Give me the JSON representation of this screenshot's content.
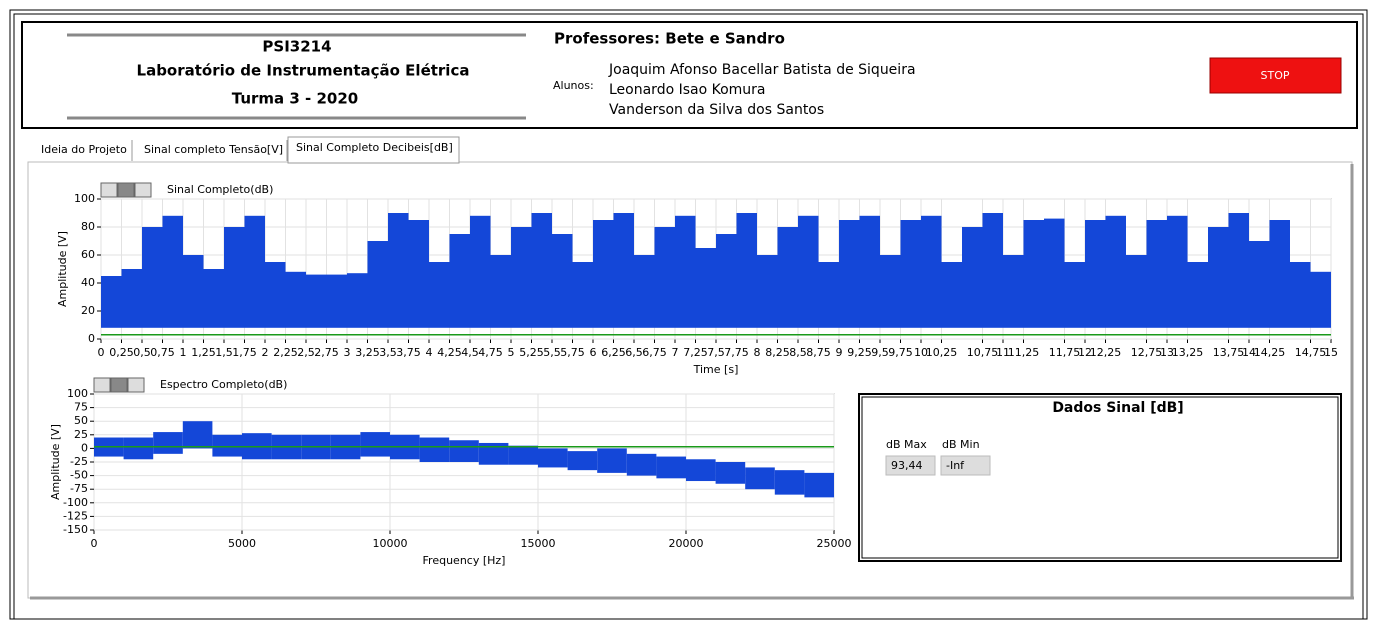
{
  "header": {
    "course": "PSI3214",
    "lab": "Laboratório de Instrumentação Elétrica",
    "class": "Turma 3 - 2020",
    "professors": "Professores: Bete e Sandro",
    "students_label": "Alunos:",
    "students": [
      "Joaquim Afonso Bacellar Batista de Siqueira",
      "Leonardo Isao Komura",
      "Vanderson da Silva dos Santos"
    ],
    "stop": "STOP"
  },
  "tabs": [
    "Ideia do Projeto",
    "Sinal completo Tensão[V]",
    "Sinal Completo Decibeis[dB]"
  ],
  "data_panel": {
    "title": "Dados Sinal [dB]",
    "max_label": "dB Max",
    "max_value": "93,44",
    "min_label": "dB Min",
    "min_value": "-Inf"
  },
  "chart_data": [
    {
      "type": "band",
      "title": "Sinal  Completo(dB)",
      "x_label": "Time [s]",
      "y_label": "Amplitude [V]",
      "color": "#1447d8",
      "cursor_y": 3,
      "xlim": [
        0,
        15
      ],
      "ylim": [
        0,
        100
      ],
      "yticks": [
        0,
        20,
        40,
        60,
        80,
        100
      ],
      "xticks": [
        0,
        {
          "value": 0.25,
          "label": "0,25"
        },
        {
          "value": 0.5,
          "label": "0,5"
        },
        {
          "value": 0.75,
          "label": "0,75"
        },
        1,
        {
          "value": 1.25,
          "label": "1,25"
        },
        {
          "value": 1.5,
          "label": "1,5"
        },
        {
          "value": 1.75,
          "label": "1,75"
        },
        2,
        {
          "value": 2.25,
          "label": "2,25"
        },
        {
          "value": 2.5,
          "label": "2,5"
        },
        {
          "value": 2.75,
          "label": "2,75"
        },
        3,
        {
          "value": 3.25,
          "label": "3,25"
        },
        {
          "value": 3.5,
          "label": "3,5"
        },
        {
          "value": 3.75,
          "label": "3,75"
        },
        4,
        {
          "value": 4.25,
          "label": "4,25"
        },
        {
          "value": 4.5,
          "label": "4,5"
        },
        {
          "value": 4.75,
          "label": "4,75"
        },
        5,
        {
          "value": 5.25,
          "label": "5,25"
        },
        {
          "value": 5.5,
          "label": "5,5"
        },
        {
          "value": 5.75,
          "label": "5,75"
        },
        6,
        {
          "value": 6.25,
          "label": "6,25"
        },
        {
          "value": 6.5,
          "label": "6,5"
        },
        {
          "value": 6.75,
          "label": "6,75"
        },
        7,
        {
          "value": 7.25,
          "label": "7,25"
        },
        {
          "value": 7.5,
          "label": "7,5"
        },
        {
          "value": 7.75,
          "label": "7,75"
        },
        8,
        {
          "value": 8.25,
          "label": "8,25"
        },
        {
          "value": 8.5,
          "label": "8,5"
        },
        {
          "value": 8.75,
          "label": "8,75"
        },
        9,
        {
          "value": 9.25,
          "label": "9,25"
        },
        {
          "value": 9.5,
          "label": "9,5"
        },
        {
          "value": 9.75,
          "label": "9,75"
        },
        10,
        {
          "value": 10.25,
          "label": "10,25"
        },
        {
          "value": 10.75,
          "label": "10,75"
        },
        11,
        {
          "value": 11.25,
          "label": "11,25"
        },
        {
          "value": 11.75,
          "label": "11,75"
        },
        12,
        {
          "value": 12.25,
          "label": "12,25"
        },
        {
          "value": 12.75,
          "label": "12,75"
        },
        13,
        {
          "value": 13.25,
          "label": "13,25"
        },
        {
          "value": 13.75,
          "label": "13,75"
        },
        14,
        {
          "value": 14.25,
          "label": "14,25"
        },
        {
          "value": 14.75,
          "label": "14,75"
        },
        15
      ],
      "x": [
        0,
        0.25,
        0.5,
        0.75,
        1,
        1.25,
        1.5,
        1.75,
        2,
        2.25,
        2.5,
        2.75,
        3,
        3.25,
        3.5,
        3.75,
        4,
        4.25,
        4.5,
        4.75,
        5,
        5.25,
        5.5,
        5.75,
        6,
        6.25,
        6.5,
        6.75,
        7,
        7.25,
        7.5,
        7.75,
        8,
        8.25,
        8.5,
        8.75,
        9,
        9.25,
        9.5,
        9.75,
        10,
        10.25,
        10.5,
        10.75,
        11,
        11.25,
        11.5,
        11.75,
        12,
        12.25,
        12.5,
        12.75,
        13,
        13.25,
        13.5,
        13.75,
        14,
        14.25,
        14.5,
        14.75
      ],
      "series": [
        {
          "values": [
            45,
            50,
            80,
            88,
            60,
            50,
            80,
            88,
            55,
            48,
            46,
            46,
            47,
            70,
            90,
            85,
            55,
            75,
            88,
            60,
            80,
            90,
            75,
            55,
            85,
            90,
            60,
            80,
            88,
            65,
            75,
            90,
            60,
            80,
            88,
            55,
            85,
            88,
            60,
            85,
            88,
            55,
            80,
            90,
            60,
            85,
            86,
            55,
            85,
            88,
            60,
            85,
            88,
            55,
            80,
            90,
            70,
            85,
            55,
            48
          ]
        },
        {
          "values": [
            8,
            8,
            8,
            8,
            8,
            8,
            8,
            8,
            8,
            8,
            8,
            8,
            8,
            8,
            8,
            8,
            8,
            8,
            8,
            8,
            8,
            8,
            8,
            8,
            8,
            8,
            8,
            8,
            8,
            8,
            8,
            8,
            8,
            8,
            8,
            8,
            8,
            8,
            8,
            8,
            8,
            8,
            8,
            8,
            8,
            8,
            8,
            8,
            8,
            8,
            8,
            8,
            8,
            8,
            8,
            8,
            8,
            8,
            8,
            8
          ]
        }
      ]
    },
    {
      "type": "band",
      "title": "Espectro Completo(dB)",
      "x_label": "Frequency [Hz]",
      "y_label": "Amplitude [V]",
      "color": "#1447d8",
      "cursor_y": 3,
      "xlim": [
        0,
        25000
      ],
      "ylim": [
        -150,
        100
      ],
      "xticks": [
        0,
        5000,
        10000,
        15000,
        20000,
        25000
      ],
      "yticks": [
        -150,
        -125,
        -100,
        -75,
        -50,
        -25,
        0,
        25,
        50,
        75,
        100
      ],
      "x": [
        0,
        1000,
        2000,
        3000,
        4000,
        5000,
        6000,
        7000,
        8000,
        9000,
        10000,
        11000,
        12000,
        13000,
        14000,
        15000,
        16000,
        17000,
        18000,
        19000,
        20000,
        21000,
        22000,
        23000,
        24000
      ],
      "series": [
        {
          "values": [
            20,
            20,
            30,
            50,
            25,
            28,
            25,
            25,
            25,
            30,
            25,
            20,
            15,
            10,
            5,
            0,
            -5,
            0,
            -10,
            -15,
            -20,
            -25,
            -35,
            -40,
            -45
          ]
        },
        {
          "values": [
            -15,
            -20,
            -10,
            0,
            -15,
            -20,
            -20,
            -20,
            -20,
            -15,
            -20,
            -25,
            -25,
            -30,
            -30,
            -35,
            -40,
            -45,
            -50,
            -55,
            -60,
            -65,
            -75,
            -85,
            -90
          ]
        }
      ]
    }
  ]
}
